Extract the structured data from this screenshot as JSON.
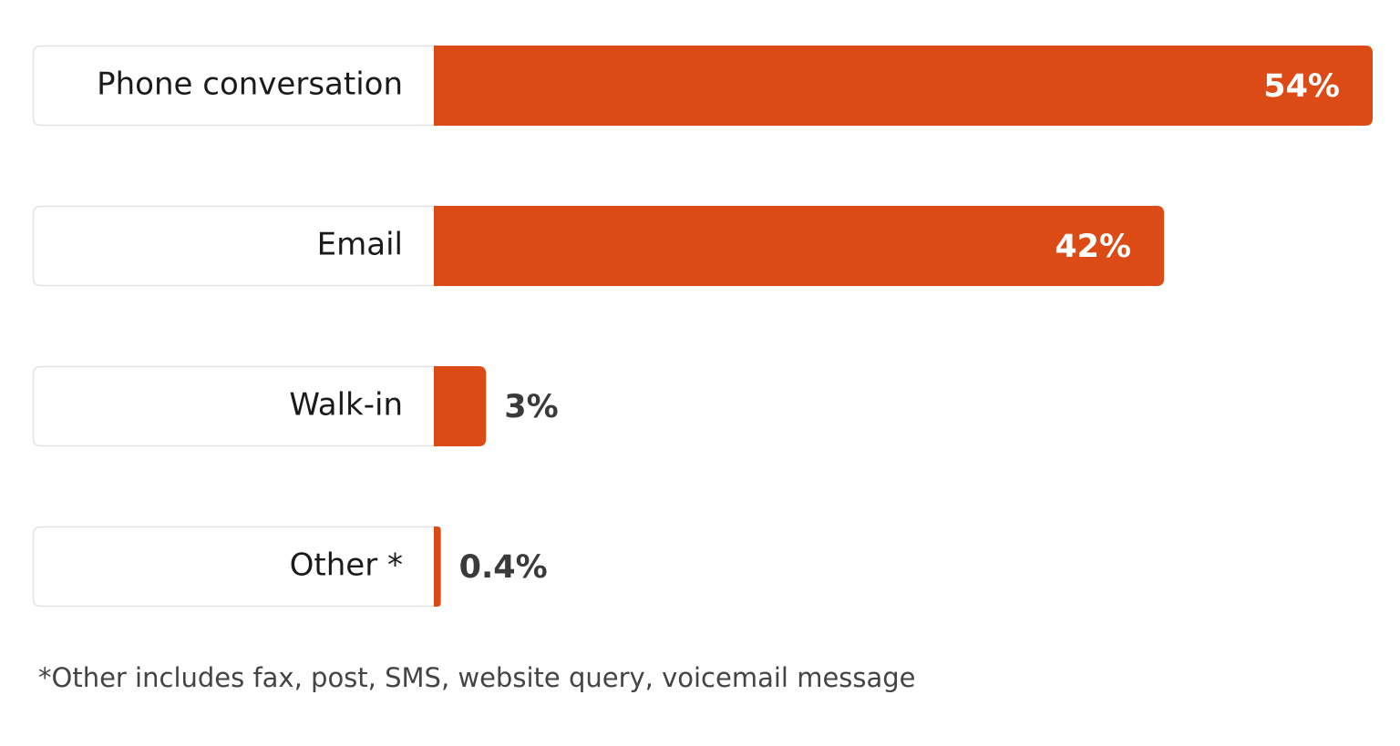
{
  "chart_data": {
    "type": "bar",
    "orientation": "horizontal",
    "categories": [
      "Phone conversation",
      "Email",
      "Walk-in",
      "Other *"
    ],
    "values": [
      54,
      42,
      3,
      0.4
    ],
    "value_labels": [
      "54%",
      "42%",
      "3%",
      "0.4%"
    ],
    "color": "#dc4a16",
    "footnote": "*Other includes fax, post, SMS, website query, voicemail message"
  }
}
